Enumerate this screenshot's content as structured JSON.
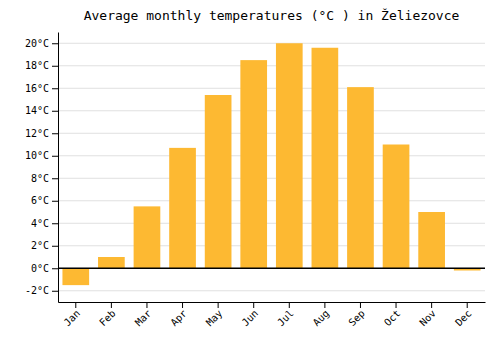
{
  "chart_data": {
    "type": "bar",
    "title": "Average monthly temperatures (°C ) in Želiezovce",
    "categories": [
      "Jan",
      "Feb",
      "Mar",
      "Apr",
      "May",
      "Jun",
      "Jul",
      "Aug",
      "Sep",
      "Oct",
      "Nov",
      "Dec"
    ],
    "values": [
      -1.5,
      1.0,
      5.5,
      10.7,
      15.4,
      18.5,
      20.0,
      19.6,
      16.1,
      11.0,
      5.0,
      -0.2
    ],
    "color": "#FDB932",
    "ylim": [
      -3,
      21
    ],
    "yticks": [
      {
        "value": -2,
        "label": "-2°C"
      },
      {
        "value": 0,
        "label": "0°C"
      },
      {
        "value": 2,
        "label": "2°C"
      },
      {
        "value": 4,
        "label": "4°C"
      },
      {
        "value": 6,
        "label": "6°C"
      },
      {
        "value": 8,
        "label": "8°C"
      },
      {
        "value": 10,
        "label": "10°C"
      },
      {
        "value": 12,
        "label": "12°C"
      },
      {
        "value": 14,
        "label": "14°C"
      },
      {
        "value": 16,
        "label": "16°C"
      },
      {
        "value": 18,
        "label": "18°C"
      },
      {
        "value": 20,
        "label": "20°C"
      }
    ],
    "grid": true
  }
}
